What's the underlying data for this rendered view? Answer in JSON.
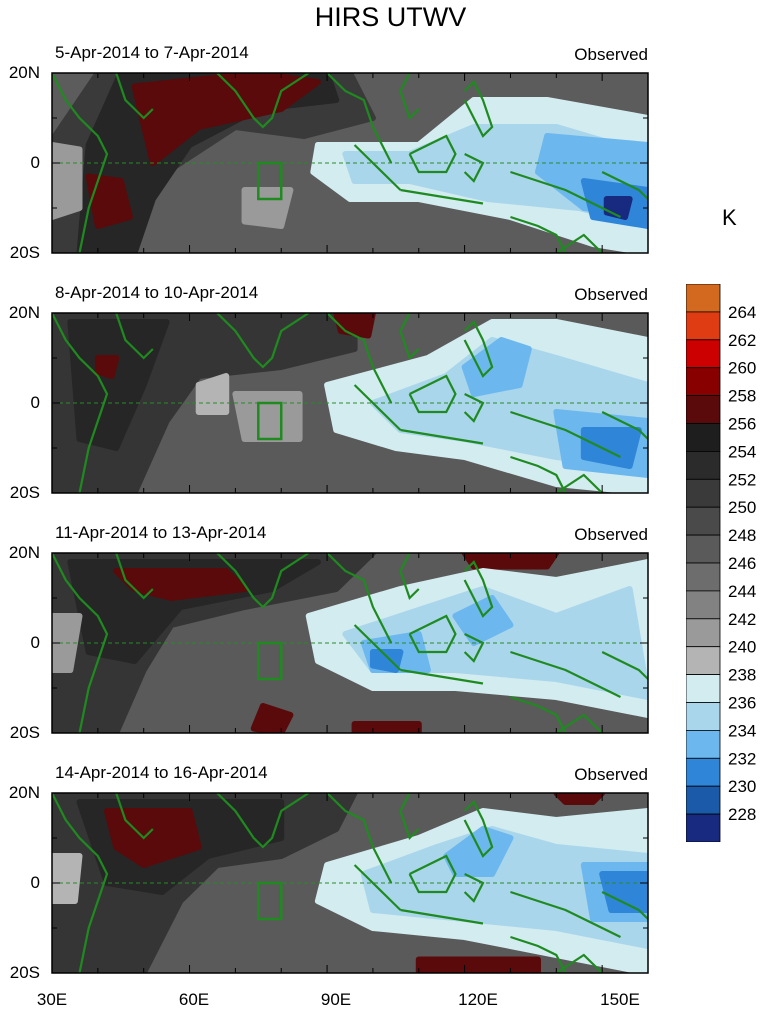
{
  "title": "HIRS UTWV",
  "label_right": "Observed",
  "panels": [
    {
      "dates": "5-Apr-2014 to 7-Apr-2014"
    },
    {
      "dates": "8-Apr-2014 to 10-Apr-2014"
    },
    {
      "dates": "11-Apr-2014 to 13-Apr-2014"
    },
    {
      "dates": "14-Apr-2014 to 16-Apr-2014"
    }
  ],
  "lat_labels": [
    "20N",
    "0",
    "20S"
  ],
  "lon_labels": [
    "30E",
    "60E",
    "90E",
    "120E",
    "150E"
  ],
  "colorbar": {
    "unit": "K",
    "labels": [
      "264",
      "262",
      "260",
      "258",
      "256",
      "254",
      "252",
      "250",
      "248",
      "246",
      "244",
      "242",
      "240",
      "238",
      "236",
      "234",
      "232",
      "230",
      "228"
    ],
    "colors": [
      "#d2691e",
      "#e03c14",
      "#cc0000",
      "#880000",
      "#5a0a0a",
      "#1e1e1e",
      "#2b2b2b",
      "#3a3a3a",
      "#4a4a4a",
      "#5a5a5a",
      "#6d6d6d",
      "#828282",
      "#9a9a9a",
      "#b4b4b4",
      "#d2ecf0",
      "#aad6ec",
      "#6cb8ee",
      "#2f86d8",
      "#1a5aa8",
      "#172a80"
    ]
  }
}
